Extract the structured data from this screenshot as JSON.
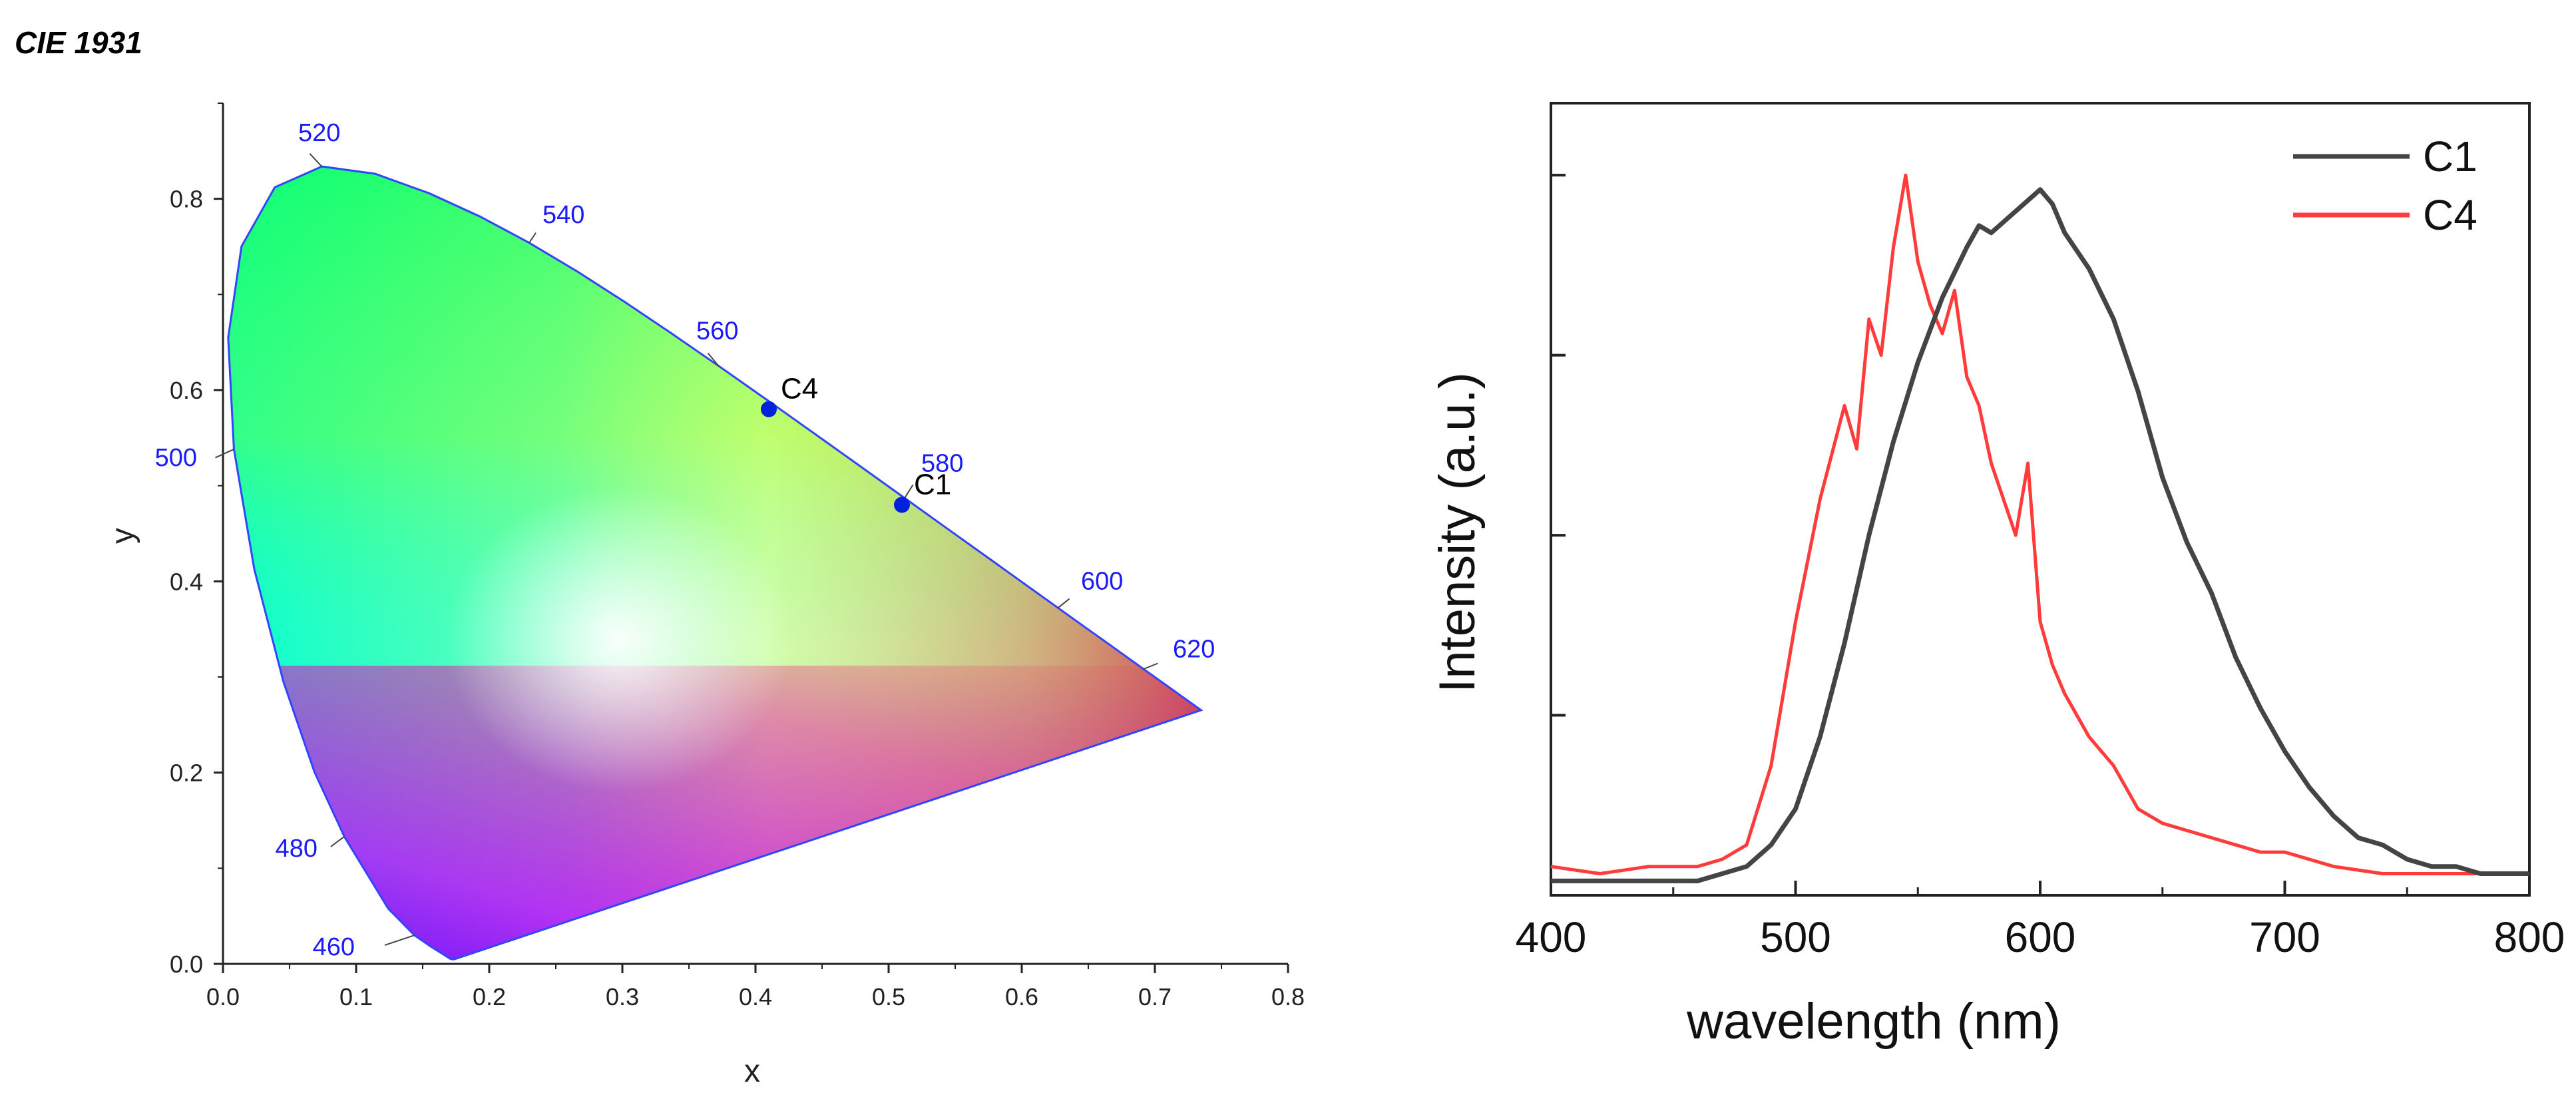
{
  "page_title": "CIE 1931",
  "colors": {
    "axis": "#222222",
    "wavelength_label": "#1a1aff",
    "marker": "#0022dd",
    "series_c1": "#444444",
    "series_c4": "#ff3b3b"
  },
  "chart_data": [
    {
      "type": "scatter",
      "title": "CIE 1931",
      "xlabel": "x",
      "ylabel": "y",
      "xlim": [
        0.0,
        0.8
      ],
      "ylim": [
        0.0,
        0.9
      ],
      "x_ticks": [
        "0.0",
        "0.1",
        "0.2",
        "0.3",
        "0.4",
        "0.5",
        "0.6",
        "0.7",
        "0.8"
      ],
      "y_ticks": [
        "0.0",
        "0.2",
        "0.4",
        "0.6",
        "0.8"
      ],
      "spectral_locus_labels": [
        {
          "text": "460",
          "x": 0.144,
          "y": 0.03
        },
        {
          "text": "480",
          "x": 0.091,
          "y": 0.133
        },
        {
          "text": "500",
          "x": 0.008,
          "y": 0.538
        },
        {
          "text": "520",
          "x": 0.074,
          "y": 0.834
        },
        {
          "text": "540",
          "x": 0.23,
          "y": 0.754
        },
        {
          "text": "560",
          "x": 0.373,
          "y": 0.624
        },
        {
          "text": "580",
          "x": 0.512,
          "y": 0.487
        },
        {
          "text": "600",
          "x": 0.627,
          "y": 0.372
        },
        {
          "text": "620",
          "x": 0.691,
          "y": 0.308
        }
      ],
      "points": [
        {
          "label": "C4",
          "x": 0.41,
          "y": 0.58
        },
        {
          "label": "C1",
          "x": 0.51,
          "y": 0.48
        }
      ]
    },
    {
      "type": "line",
      "xlabel": "wavelength (nm)",
      "ylabel": "Intensity (a.u.)",
      "xlim": [
        400,
        800
      ],
      "ylim": [
        0,
        1.1
      ],
      "x_ticks": [
        "400",
        "500",
        "600",
        "700",
        "800"
      ],
      "legend_position": "top-right",
      "series": [
        {
          "name": "C1",
          "x": [
            400,
            420,
            440,
            460,
            480,
            490,
            500,
            510,
            520,
            530,
            540,
            550,
            560,
            570,
            575,
            580,
            590,
            600,
            605,
            610,
            620,
            630,
            640,
            650,
            660,
            670,
            680,
            690,
            700,
            710,
            720,
            730,
            740,
            750,
            760,
            770,
            780,
            790,
            800
          ],
          "y": [
            0.02,
            0.02,
            0.02,
            0.02,
            0.04,
            0.07,
            0.12,
            0.22,
            0.35,
            0.5,
            0.63,
            0.74,
            0.83,
            0.9,
            0.93,
            0.92,
            0.95,
            0.98,
            0.96,
            0.92,
            0.87,
            0.8,
            0.7,
            0.58,
            0.49,
            0.42,
            0.33,
            0.26,
            0.2,
            0.15,
            0.11,
            0.08,
            0.07,
            0.05,
            0.04,
            0.04,
            0.03,
            0.03,
            0.03
          ]
        },
        {
          "name": "C4",
          "x": [
            400,
            420,
            440,
            460,
            470,
            480,
            490,
            500,
            510,
            520,
            525,
            530,
            535,
            540,
            545,
            550,
            555,
            560,
            565,
            570,
            575,
            580,
            590,
            595,
            600,
            605,
            610,
            620,
            630,
            640,
            650,
            660,
            670,
            680,
            690,
            700,
            720,
            740,
            760,
            780,
            800
          ],
          "y": [
            0.04,
            0.03,
            0.04,
            0.04,
            0.05,
            0.07,
            0.18,
            0.38,
            0.55,
            0.68,
            0.62,
            0.8,
            0.75,
            0.9,
            1.0,
            0.88,
            0.82,
            0.78,
            0.84,
            0.72,
            0.68,
            0.6,
            0.5,
            0.6,
            0.38,
            0.32,
            0.28,
            0.22,
            0.18,
            0.12,
            0.1,
            0.09,
            0.08,
            0.07,
            0.06,
            0.06,
            0.04,
            0.03,
            0.03,
            0.03,
            0.03
          ]
        }
      ]
    }
  ]
}
